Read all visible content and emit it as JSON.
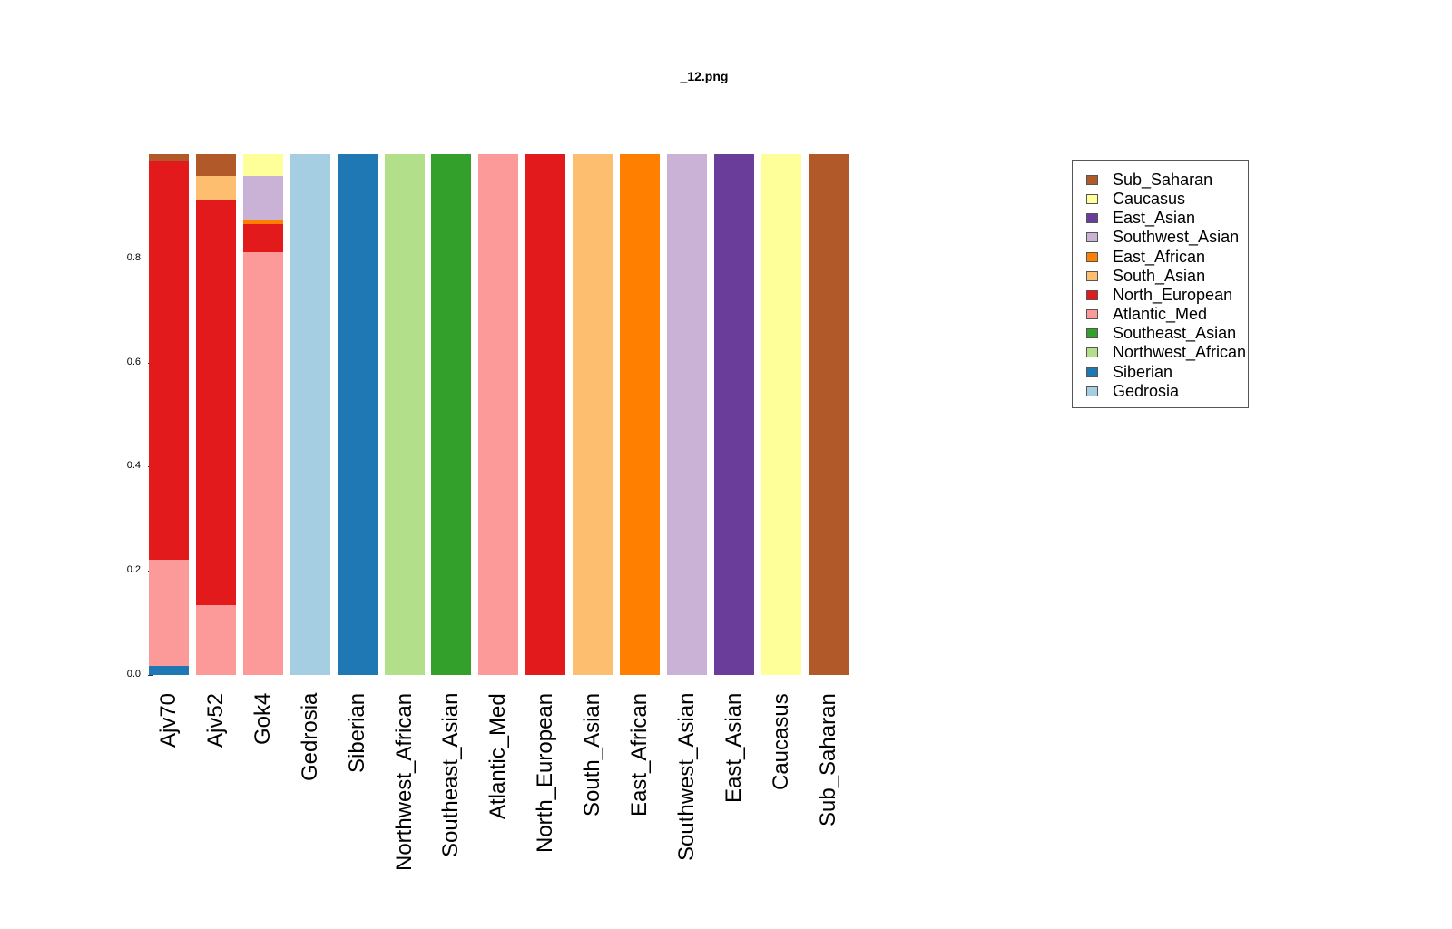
{
  "title": "_12.png",
  "chart_data": {
    "type": "bar",
    "stacked": true,
    "title": "_12.png",
    "xlabel": "",
    "ylabel": "",
    "ylim": [
      0,
      1
    ],
    "yticks": [
      0.0,
      0.2,
      0.4,
      0.6,
      0.8
    ],
    "ytick_labels": [
      "0.0",
      "0.2",
      "0.4",
      "0.6",
      "0.8"
    ],
    "grid": false,
    "legend_position": "right",
    "categories": [
      "Ajv70",
      "Ajv52",
      "Gok4",
      "Gedrosia",
      "Siberian",
      "Northwest_African",
      "Southeast_Asian",
      "Atlantic_Med",
      "North_European",
      "South_Asian",
      "East_African",
      "Southwest_Asian",
      "East_Asian",
      "Caucasus",
      "Sub_Saharan"
    ],
    "series": [
      {
        "name": "Gedrosia",
        "color": "#A6CEE3",
        "values": [
          0,
          0,
          0,
          1,
          0,
          0,
          0,
          0,
          0,
          0,
          0,
          0,
          0,
          0,
          0
        ]
      },
      {
        "name": "Siberian",
        "color": "#1F78B4",
        "values": [
          0.017,
          0,
          0,
          0,
          1,
          0,
          0,
          0,
          0,
          0,
          0,
          0,
          0,
          0,
          0
        ]
      },
      {
        "name": "Northwest_African",
        "color": "#B2DF8A",
        "values": [
          0,
          0,
          0,
          0,
          0,
          1,
          0,
          0,
          0,
          0,
          0,
          0,
          0,
          0,
          0
        ]
      },
      {
        "name": "Southeast_Asian",
        "color": "#33A02C",
        "values": [
          0,
          0,
          0,
          0,
          0,
          0,
          1,
          0,
          0,
          0,
          0,
          0,
          0,
          0,
          0
        ]
      },
      {
        "name": "Atlantic_Med",
        "color": "#FB9A99",
        "values": [
          0.204,
          0.134,
          0.812,
          0,
          0,
          0,
          0,
          1,
          0,
          0,
          0,
          0,
          0,
          0,
          0
        ]
      },
      {
        "name": "North_European",
        "color": "#E31A1C",
        "values": [
          0.765,
          0.777,
          0.054,
          0,
          0,
          0,
          0,
          0,
          1,
          0,
          0,
          0,
          0,
          0,
          0
        ]
      },
      {
        "name": "South_Asian",
        "color": "#FDBF6F",
        "values": [
          0,
          0.047,
          0,
          0,
          0,
          0,
          0,
          0,
          0,
          1,
          0,
          0,
          0,
          0,
          0
        ]
      },
      {
        "name": "East_African",
        "color": "#FF7F00",
        "values": [
          0,
          0,
          0.007,
          0,
          0,
          0,
          0,
          0,
          0,
          0,
          1,
          0,
          0,
          0,
          0
        ]
      },
      {
        "name": "Southwest_Asian",
        "color": "#CAB2D6",
        "values": [
          0,
          0,
          0.085,
          0,
          0,
          0,
          0,
          0,
          0,
          0,
          0,
          1,
          0,
          0,
          0
        ]
      },
      {
        "name": "East_Asian",
        "color": "#6A3D9A",
        "values": [
          0,
          0,
          0,
          0,
          0,
          0,
          0,
          0,
          0,
          0,
          0,
          0,
          1,
          0,
          0
        ]
      },
      {
        "name": "Caucasus",
        "color": "#FFFF99",
        "values": [
          0,
          0,
          0.042,
          0,
          0,
          0,
          0,
          0,
          0,
          0,
          0,
          0,
          0,
          1,
          0
        ]
      },
      {
        "name": "Sub_Saharan",
        "color": "#B15928",
        "values": [
          0.014,
          0.042,
          0,
          0,
          0,
          0,
          0,
          0,
          0,
          0,
          0,
          0,
          0,
          0,
          1
        ]
      }
    ],
    "legend": [
      "Sub_Saharan",
      "Caucasus",
      "East_Asian",
      "Southwest_Asian",
      "East_African",
      "South_Asian",
      "North_European",
      "Atlantic_Med",
      "Southeast_Asian",
      "Northwest_African",
      "Siberian",
      "Gedrosia"
    ]
  }
}
